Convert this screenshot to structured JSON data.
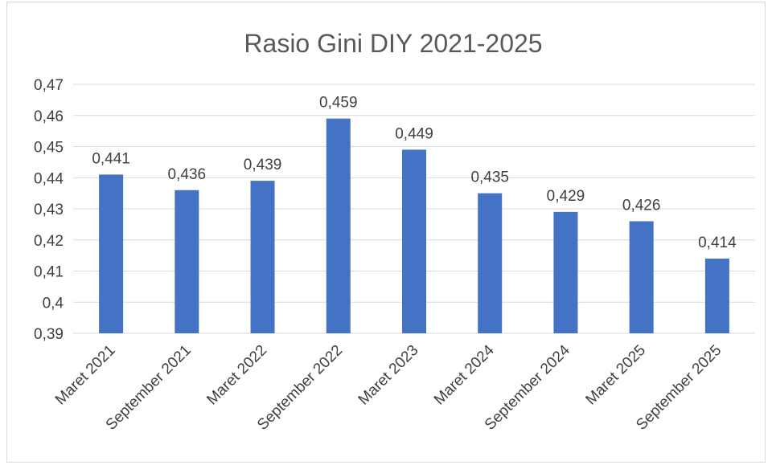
{
  "chart_data": {
    "type": "bar",
    "title": "Rasio Gini DIY 2021-2025",
    "categories": [
      "Maret 2021",
      "September 2021",
      "Maret 2022",
      "September 2022",
      "Maret 2023",
      "Maret 2024",
      "September 2024",
      "Maret 2025",
      "September 2025"
    ],
    "values": [
      0.441,
      0.436,
      0.439,
      0.459,
      0.449,
      0.435,
      0.429,
      0.426,
      0.414
    ],
    "data_labels": [
      "0,441",
      "0,436",
      "0,439",
      "0,459",
      "0,449",
      "0,435",
      "0,429",
      "0,426",
      "0,414"
    ],
    "ylim": [
      0.39,
      0.47
    ],
    "y_ticks": [
      "0,39",
      "0,4",
      "0,41",
      "0,42",
      "0,43",
      "0,44",
      "0,45",
      "0,46",
      "0,47"
    ],
    "y_tick_values": [
      0.39,
      0.4,
      0.41,
      0.42,
      0.43,
      0.44,
      0.45,
      0.46,
      0.47
    ],
    "xlabel": "",
    "ylabel": "",
    "grid": true,
    "legend": "none",
    "colors": {
      "bar": "#4472c4",
      "grid": "#d9d9d9",
      "text": "#404040",
      "title": "#595959"
    }
  }
}
